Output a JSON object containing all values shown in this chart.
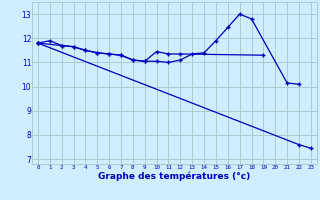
{
  "xlabel": "Graphe des températures (°c)",
  "background_color": "#cceeff",
  "grid_color": "#aacccc",
  "line_color": "#0000bb",
  "ylim": [
    6.8,
    13.5
  ],
  "yticks": [
    7,
    8,
    9,
    10,
    11,
    12,
    13
  ],
  "xlim": [
    -0.5,
    23.5
  ],
  "line1_x": [
    0,
    1,
    2,
    3,
    4,
    5,
    6,
    7,
    8,
    9,
    10,
    11,
    12,
    13,
    14,
    15,
    16,
    17,
    18,
    21,
    22
  ],
  "line1_y": [
    11.8,
    11.9,
    11.7,
    11.65,
    11.5,
    11.4,
    11.35,
    11.3,
    11.1,
    11.05,
    11.05,
    11.0,
    11.1,
    11.35,
    11.4,
    11.9,
    12.45,
    13.0,
    12.8,
    10.15,
    10.1
  ],
  "line2_x": [
    0,
    2,
    3,
    4,
    5,
    6,
    7,
    8,
    9,
    10,
    11,
    12,
    19
  ],
  "line2_y": [
    11.8,
    11.7,
    11.65,
    11.5,
    11.4,
    11.35,
    11.3,
    11.1,
    11.05,
    11.45,
    11.35,
    11.35,
    11.3
  ],
  "line3_x": [
    0,
    22,
    23
  ],
  "line3_y": [
    11.8,
    7.6,
    7.45
  ]
}
